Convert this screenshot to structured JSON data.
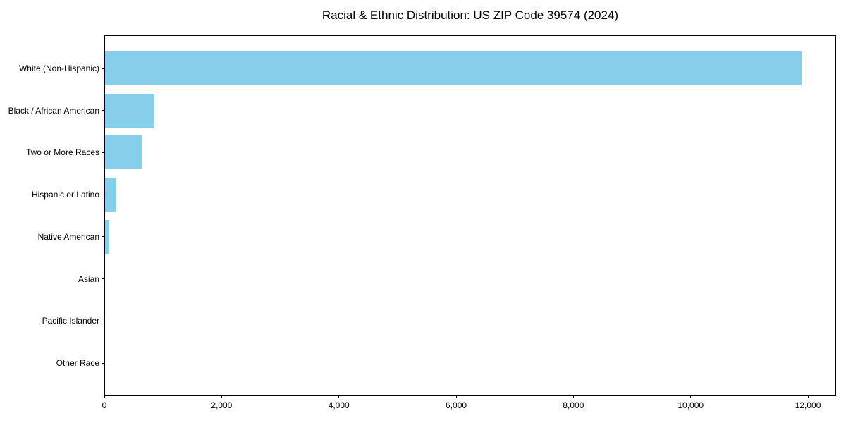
{
  "chart_data": {
    "type": "bar",
    "orientation": "horizontal",
    "title": "Racial & Ethnic Distribution: US ZIP Code 39574 (2024)",
    "categories": [
      "White (Non-Hispanic)",
      "Black / African American",
      "Two or More Races",
      "Hispanic or Latino",
      "Native American",
      "Asian",
      "Pacific Islander",
      "Other Race"
    ],
    "values": [
      11880,
      845,
      640,
      190,
      70,
      0,
      0,
      0
    ],
    "bar_color": "#87CEEB",
    "xlabel": "",
    "ylabel": "",
    "xlim": [
      0,
      12480
    ],
    "x_ticks": [
      {
        "value": 0,
        "label": "0"
      },
      {
        "value": 2000,
        "label": "2,000"
      },
      {
        "value": 4000,
        "label": "4,000"
      },
      {
        "value": 6000,
        "label": "6,000"
      },
      {
        "value": 8000,
        "label": "8,000"
      },
      {
        "value": 10000,
        "label": "10,000"
      },
      {
        "value": 12000,
        "label": "12,000"
      }
    ],
    "grid": false,
    "legend_position": "none",
    "background_color": "#ffffff",
    "axis_color": "#000000"
  }
}
